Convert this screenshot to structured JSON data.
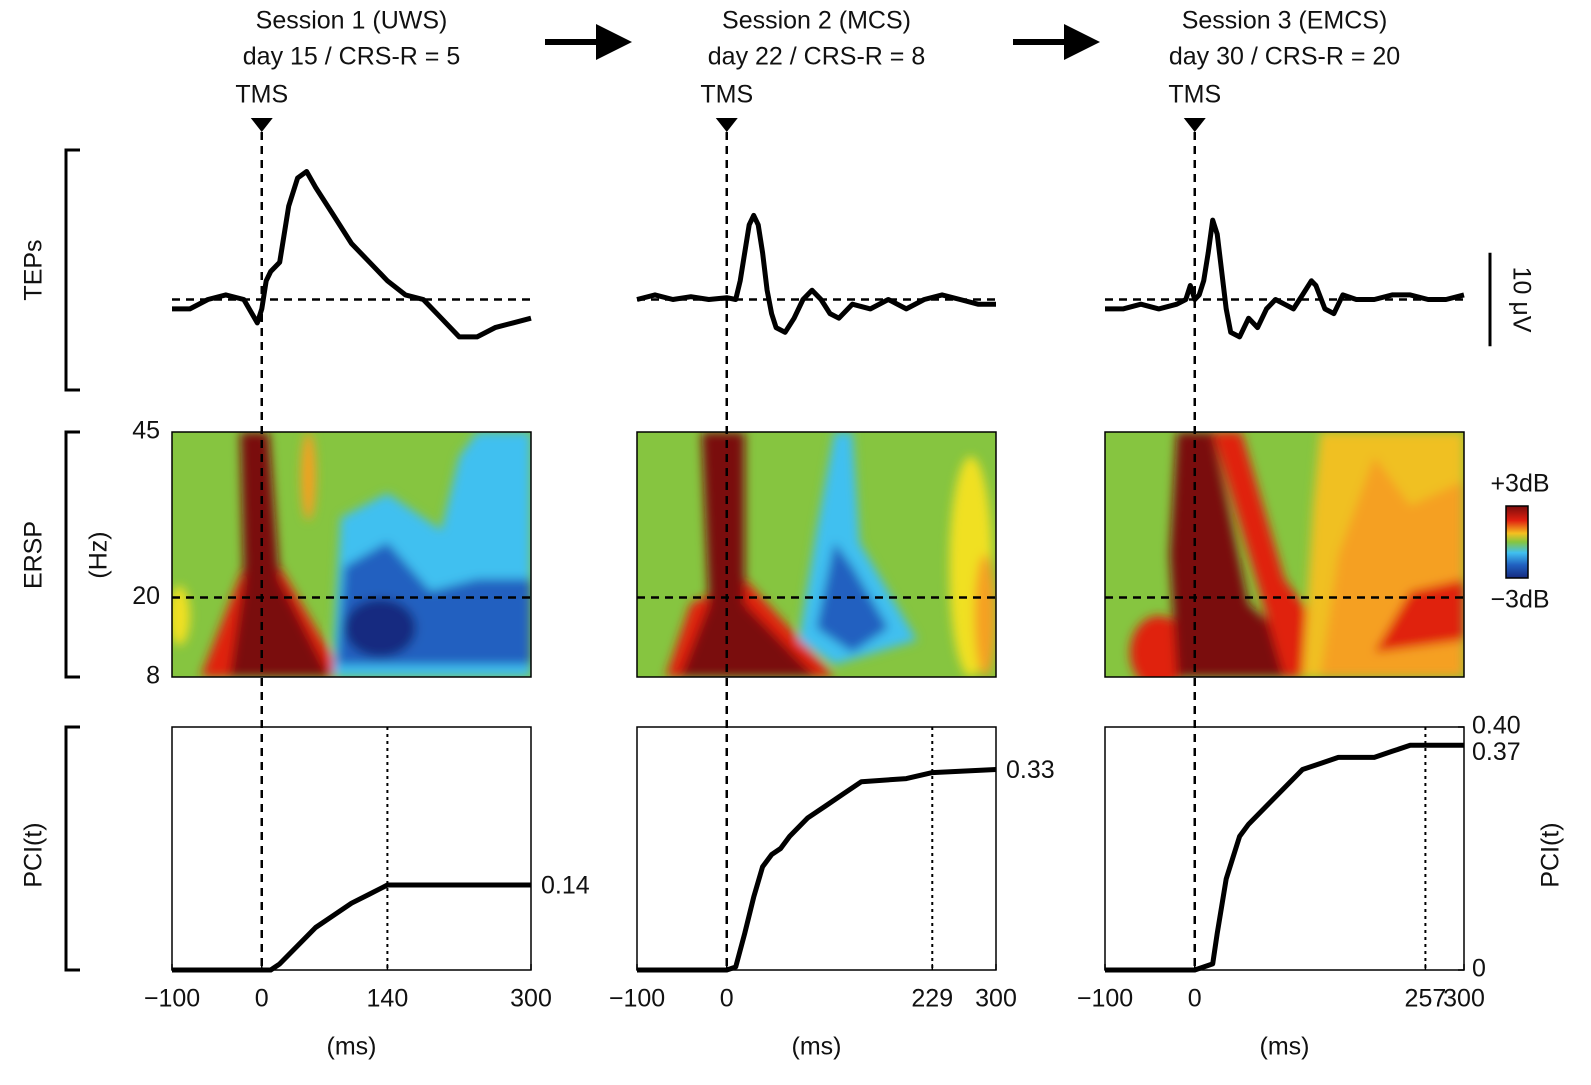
{
  "figure": {
    "row_labels": [
      "TEPs",
      "ERSP",
      "PCI(t)"
    ],
    "scale_bar": {
      "value": 10,
      "label": "10 μV"
    },
    "ersp": {
      "unit_label": "(Hz)",
      "ylim": [
        8,
        45
      ],
      "yticks": [
        8,
        20,
        45
      ],
      "colorbar_labels": [
        "+3dB",
        "−3dB"
      ]
    }
  },
  "chart_data": [
    {
      "type": "line",
      "title": "Session 1 (UWS)",
      "subtitle": "day 15 / CRS-R = 5",
      "marker_label": "TMS",
      "x_label": "(ms)",
      "xlim": [
        -100,
        300
      ],
      "xticks": [
        {
          "value": -100,
          "label": "−100"
        },
        0,
        140,
        300
      ],
      "tep": {
        "ylim": [
          -10,
          16
        ],
        "x": [
          -100,
          -80,
          -60,
          -40,
          -20,
          -5,
          0,
          5,
          10,
          20,
          30,
          40,
          50,
          60,
          80,
          100,
          120,
          140,
          160,
          180,
          200,
          220,
          240,
          260,
          280,
          300
        ],
        "values": [
          -1,
          -1,
          0,
          0.5,
          0,
          -2.5,
          -1,
          2,
          3,
          4,
          10,
          13,
          13.7,
          12,
          9,
          6,
          4,
          2,
          0.5,
          0,
          -2,
          -4,
          -4,
          -3,
          -2.5,
          -2
        ]
      },
      "pci": {
        "ylim": [
          0,
          0.4
        ],
        "end_label": true,
        "x": [
          -100,
          0,
          10,
          20,
          40,
          60,
          80,
          100,
          120,
          140,
          200,
          300
        ],
        "values": [
          0,
          0,
          0,
          0.01,
          0.04,
          0.07,
          0.09,
          0.11,
          0.125,
          0.14,
          0.14,
          0.14
        ]
      }
    },
    {
      "type": "line",
      "title": "Session 2 (MCS)",
      "subtitle": "day 22 / CRS-R = 8",
      "marker_label": "TMS",
      "x_label": "(ms)",
      "xlim": [
        -100,
        300
      ],
      "xticks": [
        {
          "value": -100,
          "label": "−100"
        },
        0,
        229,
        300
      ],
      "tep": {
        "ylim": [
          -10,
          16
        ],
        "x": [
          -100,
          -80,
          -60,
          -40,
          -20,
          0,
          10,
          15,
          20,
          25,
          30,
          35,
          40,
          45,
          50,
          55,
          65,
          75,
          85,
          95,
          105,
          115,
          125,
          140,
          160,
          180,
          200,
          220,
          240,
          260,
          280,
          300
        ],
        "values": [
          0,
          0.5,
          0,
          0.3,
          0,
          0.2,
          0,
          2,
          5,
          8,
          9,
          8,
          5,
          1,
          -1.5,
          -3,
          -3.5,
          -2,
          0,
          1,
          0,
          -1.5,
          -2,
          -0.5,
          -1,
          0,
          -1,
          0,
          0.5,
          0,
          -0.5,
          -0.5
        ]
      },
      "pci": {
        "ylim": [
          0,
          0.4
        ],
        "end_label": true,
        "x": [
          -100,
          0,
          10,
          20,
          30,
          40,
          50,
          60,
          70,
          90,
          110,
          130,
          150,
          200,
          229,
          300
        ],
        "values": [
          0,
          0,
          0.005,
          0.06,
          0.12,
          0.17,
          0.19,
          0.2,
          0.22,
          0.25,
          0.27,
          0.29,
          0.31,
          0.315,
          0.325,
          0.33
        ]
      }
    },
    {
      "type": "line",
      "title": "Session 3 (EMCS)",
      "subtitle": "day 30 / CRS-R = 20",
      "marker_label": "TMS",
      "x_label": "(ms)",
      "xlim": [
        -100,
        300
      ],
      "xticks": [
        {
          "value": -100,
          "label": "−100"
        },
        0,
        257,
        300
      ],
      "tep": {
        "ylim": [
          -10,
          16
        ],
        "x": [
          -100,
          -80,
          -60,
          -40,
          -20,
          -10,
          -5,
          0,
          5,
          10,
          15,
          20,
          25,
          30,
          35,
          40,
          50,
          60,
          70,
          80,
          90,
          100,
          110,
          120,
          130,
          135,
          145,
          155,
          165,
          180,
          200,
          220,
          240,
          260,
          280,
          300
        ],
        "values": [
          -1,
          -1,
          -0.5,
          -1,
          -0.5,
          0,
          1.5,
          0,
          0.5,
          2,
          5,
          8.5,
          7,
          3,
          -1,
          -3.5,
          -4,
          -2,
          -3,
          -1,
          0,
          -0.5,
          -1,
          0.5,
          2,
          1.5,
          -1,
          -1.5,
          0.5,
          0,
          0,
          0.5,
          0.5,
          0,
          0,
          0.5
        ]
      },
      "pci": {
        "ylim": [
          0,
          0.4
        ],
        "end_label": false,
        "yticks": [
          0,
          0.37,
          {
            "value": 0.4,
            "label": "0.40"
          }
        ],
        "ytick_side": "right",
        "x": [
          -100,
          0,
          20,
          25,
          35,
          50,
          60,
          80,
          100,
          120,
          140,
          160,
          200,
          220,
          240,
          257,
          300
        ],
        "values": [
          0,
          0,
          0.01,
          0.06,
          0.15,
          0.22,
          0.24,
          0.27,
          0.3,
          0.33,
          0.34,
          0.35,
          0.35,
          0.36,
          0.37,
          0.37,
          0.37
        ]
      }
    }
  ]
}
